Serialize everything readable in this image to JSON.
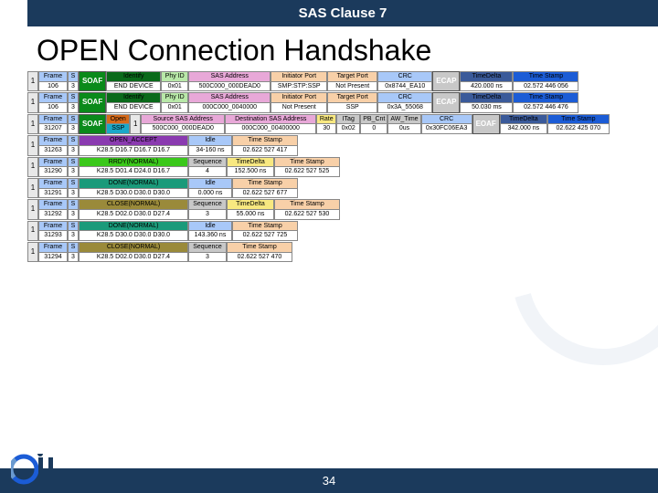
{
  "header": {
    "clause": "SAS Clause 7"
  },
  "title": "OPEN Connection Handshake",
  "footer": {
    "page": "34"
  },
  "labels": {
    "frame": "Frame",
    "s": "S",
    "idx": "1",
    "identify": "Identify",
    "phyid": "Phy ID",
    "sasaddr": "SAS Address",
    "initport": "Initiator Port",
    "targetport": "Target Port",
    "crc": "CRC",
    "ecap": "ECAP",
    "timedelta": "TimeDelta",
    "timestamp": "Time Stamp",
    "open": "Open",
    "ssp": "SSP",
    "srcsas": "Source SAS Address",
    "dstsas": "Destination SAS Address",
    "rate": "Rate",
    "itag": "ITag",
    "pbcnt": "PB_Cnt",
    "awtime": "AW_Time",
    "idle": "Idle",
    "sequence": "Sequence",
    "soaf": "SOAF",
    "eoaf": "EOAF"
  },
  "rows": [
    {
      "type": "identify",
      "frame": "106",
      "s": "3",
      "tag": "SOAF",
      "tagc": "c-green",
      "id_label": "Identify",
      "idc": "c-dgreen",
      "enddev": "END DEVICE",
      "phyid": "0x01",
      "sasaddr": "500C000_000DEAD0",
      "initport": "SMP:STP:SSP",
      "targetport": "Not Present",
      "crc": "0x8744_EA10",
      "ecap": "ECAP",
      "timedelta": "420.000 ns",
      "timestamp": "02.572 446 056"
    },
    {
      "type": "identify",
      "frame": "106",
      "s": "3",
      "tag": "SOAF",
      "tagc": "c-green",
      "id_label": "Identify",
      "idc": "c-dgreen",
      "enddev": "END DEVICE",
      "phyid": "0x01",
      "sasaddr": "000C000_0040000",
      "initport": "Not Present",
      "targetport": "SSP",
      "crc": "0x3A_55068",
      "ecap": "ECAP",
      "timedelta": "50.030 ms",
      "timestamp": "02.572 446 476"
    },
    {
      "type": "open",
      "frame": "31207",
      "s": "3",
      "tag": "SOAF",
      "tagc": "c-green",
      "open": "Open",
      "ssp": "SSP",
      "srcsas": "500C000_000DEAD0",
      "dstsas": "000C000_00400000",
      "rate": "30",
      "itag": "0x02",
      "pbcnt": "0",
      "awtime": "0us",
      "crc": "0x30FC06EA3",
      "ecap": "EOAF",
      "timedelta": "342.000 ns",
      "timestamp": "02.622 425 070"
    },
    {
      "type": "prim",
      "frame": "31263",
      "s": "3",
      "prim": "OPEN_ACCEPT",
      "primc": "c-purple",
      "dword": "K28.5 D16.7 D16.7 D16.7",
      "idle": "Idle",
      "idleval": "34-160 ns",
      "timestamp": "02.622 527 417"
    },
    {
      "type": "prim",
      "frame": "31290",
      "s": "3",
      "prim": "RRDY(NORMAL)",
      "primc": "c-lime",
      "dword": "K28.5 D01.4 D24.0 D16.7",
      "seq": "Sequence",
      "seqval": "4",
      "timedelta": "152.500 ns",
      "timestamp": "02.622 527 525"
    },
    {
      "type": "prim",
      "frame": "31291",
      "s": "3",
      "prim": "DONE(NORMAL)",
      "primc": "c-teal",
      "dword": "K28.5 D30.0 D30.0 D30.0",
      "idle": "Idle",
      "idleval": "0.000 ns",
      "timestamp": "02.622 527 677"
    },
    {
      "type": "prim",
      "frame": "31292",
      "s": "3",
      "prim": "CLOSE(NORMAL)",
      "primc": "c-olive",
      "dword": "K28.5 D02.0 D30.0 D27.4",
      "seq": "Sequence",
      "seqval": "3",
      "timedelta": "55.000 ns",
      "timestamp": "02.622 527 530"
    },
    {
      "type": "prim",
      "frame": "31293",
      "s": "3",
      "prim": "DONE(NORMAL)",
      "primc": "c-teal",
      "dword": "K28.5 D30.0 D30.0 D30.0",
      "idle": "Idle",
      "idleval": "143.360 ns",
      "timestamp": "02.622 527 725"
    },
    {
      "type": "prim",
      "frame": "31294",
      "s": "3",
      "prim": "CLOSE(NORMAL)",
      "primc": "c-olive",
      "dword": "K28.5 D02.0 D30.0 D27.4",
      "seq": "Sequence",
      "seqval": "3",
      "timestamp": "02.622 527 470"
    }
  ]
}
